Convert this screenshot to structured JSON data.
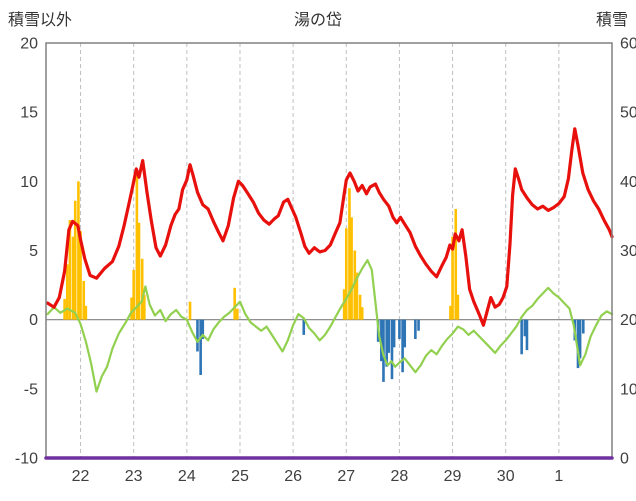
{
  "chart_data": {
    "type": "line",
    "title": "湯の岱",
    "left_axis": {
      "label": "積雪以外",
      "min": -10,
      "max": 20,
      "ticks": [
        20,
        15,
        10,
        5,
        0,
        -5,
        -10
      ]
    },
    "right_axis": {
      "label": "積雪",
      "min": 0,
      "max": 60,
      "ticks": [
        60,
        50,
        40,
        30,
        20,
        10,
        0
      ]
    },
    "x_axis": {
      "range": [
        21.35,
        32
      ],
      "ticks": [
        {
          "x": 22,
          "label": "22"
        },
        {
          "x": 23,
          "label": "23"
        },
        {
          "x": 24,
          "label": "24"
        },
        {
          "x": 25,
          "label": "25"
        },
        {
          "x": 26,
          "label": "26"
        },
        {
          "x": 27,
          "label": "27"
        },
        {
          "x": 28,
          "label": "28"
        },
        {
          "x": 29,
          "label": "29"
        },
        {
          "x": 30,
          "label": "30"
        },
        {
          "x": 31,
          "label": "1"
        }
      ]
    },
    "layout": {
      "grid": "vertical-dashed",
      "legend": "none",
      "grid_color": "#c0c0c0",
      "border_color": "#808080",
      "zero_line_color": "#808080",
      "text_color": "#404040"
    },
    "series": [
      {
        "id": "orange-bars",
        "type": "bar",
        "axis": "left",
        "color": "#ffc000",
        "points": [
          [
            21.7,
            1.5
          ],
          [
            21.75,
            4.0
          ],
          [
            21.8,
            7.2
          ],
          [
            21.86,
            6.0
          ],
          [
            21.9,
            8.6
          ],
          [
            21.96,
            10.0
          ],
          [
            22.0,
            6.4
          ],
          [
            22.06,
            2.8
          ],
          [
            22.1,
            1.0
          ],
          [
            22.96,
            1.6
          ],
          [
            23.0,
            3.6
          ],
          [
            23.06,
            10.4
          ],
          [
            23.1,
            7.0
          ],
          [
            23.16,
            4.4
          ],
          [
            23.2,
            1.8
          ],
          [
            24.06,
            1.3
          ],
          [
            24.9,
            2.3
          ],
          [
            24.95,
            0.8
          ],
          [
            26.96,
            2.2
          ],
          [
            27.0,
            6.6
          ],
          [
            27.06,
            9.5
          ],
          [
            27.1,
            7.4
          ],
          [
            27.16,
            5.0
          ],
          [
            27.2,
            3.4
          ],
          [
            27.26,
            1.8
          ],
          [
            27.3,
            0.9
          ],
          [
            28.96,
            1.0
          ],
          [
            29.0,
            6.0
          ],
          [
            29.06,
            8.0
          ],
          [
            29.1,
            1.8
          ]
        ]
      },
      {
        "id": "blue-bars",
        "type": "bar",
        "axis": "left",
        "color": "#2e75b6",
        "points": [
          [
            24.2,
            -2.3
          ],
          [
            24.26,
            -4.0
          ],
          [
            24.3,
            -1.4
          ],
          [
            26.2,
            -1.1
          ],
          [
            27.6,
            -1.6
          ],
          [
            27.66,
            -3.0
          ],
          [
            27.7,
            -4.5
          ],
          [
            27.76,
            -3.4
          ],
          [
            27.8,
            -2.4
          ],
          [
            27.86,
            -4.3
          ],
          [
            27.9,
            -2.0
          ],
          [
            28.0,
            -1.4
          ],
          [
            28.06,
            -3.8
          ],
          [
            28.1,
            -2.0
          ],
          [
            28.3,
            -1.4
          ],
          [
            28.36,
            -0.8
          ],
          [
            30.3,
            -2.5
          ],
          [
            30.36,
            -1.2
          ],
          [
            30.4,
            -2.2
          ],
          [
            31.3,
            -1.5
          ],
          [
            31.36,
            -3.5
          ],
          [
            31.4,
            -2.8
          ],
          [
            31.46,
            -1.0
          ]
        ]
      },
      {
        "id": "green-line",
        "type": "line",
        "axis": "left",
        "color": "#92d050",
        "width": 2.2,
        "points": [
          [
            21.38,
            0.4
          ],
          [
            21.5,
            0.9
          ],
          [
            21.62,
            0.5
          ],
          [
            21.75,
            0.8
          ],
          [
            21.9,
            0.5
          ],
          [
            22.0,
            -0.3
          ],
          [
            22.1,
            -1.6
          ],
          [
            22.2,
            -3.2
          ],
          [
            22.3,
            -5.2
          ],
          [
            22.4,
            -4.1
          ],
          [
            22.5,
            -3.4
          ],
          [
            22.6,
            -2.1
          ],
          [
            22.72,
            -1.0
          ],
          [
            22.85,
            -0.2
          ],
          [
            22.95,
            0.5
          ],
          [
            23.05,
            0.9
          ],
          [
            23.15,
            1.3
          ],
          [
            23.22,
            2.4
          ],
          [
            23.3,
            1.1
          ],
          [
            23.4,
            0.3
          ],
          [
            23.5,
            0.7
          ],
          [
            23.6,
            -0.1
          ],
          [
            23.7,
            0.4
          ],
          [
            23.8,
            0.7
          ],
          [
            23.9,
            0.2
          ],
          [
            24.0,
            0.0
          ],
          [
            24.1,
            -0.9
          ],
          [
            24.2,
            -1.6
          ],
          [
            24.3,
            -1.1
          ],
          [
            24.4,
            -1.5
          ],
          [
            24.5,
            -0.7
          ],
          [
            24.6,
            -0.2
          ],
          [
            24.7,
            0.2
          ],
          [
            24.8,
            0.5
          ],
          [
            24.9,
            0.9
          ],
          [
            25.0,
            1.3
          ],
          [
            25.1,
            0.4
          ],
          [
            25.2,
            -0.2
          ],
          [
            25.3,
            -0.5
          ],
          [
            25.4,
            -0.8
          ],
          [
            25.5,
            -0.5
          ],
          [
            25.6,
            -1.1
          ],
          [
            25.7,
            -1.7
          ],
          [
            25.8,
            -2.3
          ],
          [
            25.9,
            -1.5
          ],
          [
            26.0,
            -0.4
          ],
          [
            26.1,
            0.4
          ],
          [
            26.2,
            0.1
          ],
          [
            26.3,
            -0.6
          ],
          [
            26.4,
            -1.0
          ],
          [
            26.5,
            -1.5
          ],
          [
            26.6,
            -1.1
          ],
          [
            26.7,
            -0.5
          ],
          [
            26.8,
            0.2
          ],
          [
            26.9,
            0.9
          ],
          [
            27.0,
            1.5
          ],
          [
            27.1,
            2.2
          ],
          [
            27.2,
            3.0
          ],
          [
            27.3,
            3.7
          ],
          [
            27.4,
            4.3
          ],
          [
            27.48,
            3.6
          ],
          [
            27.55,
            1.2
          ],
          [
            27.62,
            -1.2
          ],
          [
            27.7,
            -2.6
          ],
          [
            27.78,
            -3.3
          ],
          [
            27.85,
            -3.0
          ],
          [
            27.92,
            -3.4
          ],
          [
            28.0,
            -3.1
          ],
          [
            28.1,
            -2.8
          ],
          [
            28.2,
            -3.3
          ],
          [
            28.3,
            -3.8
          ],
          [
            28.4,
            -3.3
          ],
          [
            28.5,
            -2.6
          ],
          [
            28.6,
            -2.2
          ],
          [
            28.7,
            -2.5
          ],
          [
            28.8,
            -1.9
          ],
          [
            28.9,
            -1.4
          ],
          [
            29.0,
            -1.0
          ],
          [
            29.1,
            -0.5
          ],
          [
            29.2,
            -0.7
          ],
          [
            29.3,
            -1.1
          ],
          [
            29.4,
            -0.8
          ],
          [
            29.5,
            -1.2
          ],
          [
            29.6,
            -1.6
          ],
          [
            29.7,
            -2.0
          ],
          [
            29.8,
            -2.4
          ],
          [
            29.9,
            -1.9
          ],
          [
            30.0,
            -1.5
          ],
          [
            30.1,
            -1.0
          ],
          [
            30.2,
            -0.5
          ],
          [
            30.3,
            0.2
          ],
          [
            30.4,
            0.7
          ],
          [
            30.5,
            1.0
          ],
          [
            30.6,
            1.5
          ],
          [
            30.7,
            1.9
          ],
          [
            30.8,
            2.3
          ],
          [
            30.9,
            1.9
          ],
          [
            31.0,
            1.6
          ],
          [
            31.1,
            1.2
          ],
          [
            31.2,
            0.8
          ],
          [
            31.28,
            -0.4
          ],
          [
            31.35,
            -2.1
          ],
          [
            31.4,
            -3.3
          ],
          [
            31.5,
            -2.5
          ],
          [
            31.6,
            -1.2
          ],
          [
            31.7,
            -0.4
          ],
          [
            31.8,
            0.3
          ],
          [
            31.9,
            0.6
          ],
          [
            32.0,
            0.4
          ]
        ]
      },
      {
        "id": "red-line",
        "type": "line",
        "axis": "left",
        "color": "#e8100c",
        "width": 3.2,
        "points": [
          [
            21.38,
            1.2
          ],
          [
            21.5,
            0.9
          ],
          [
            21.6,
            1.6
          ],
          [
            21.7,
            3.5
          ],
          [
            21.78,
            6.5
          ],
          [
            21.85,
            7.1
          ],
          [
            21.95,
            6.8
          ],
          [
            22.0,
            5.8
          ],
          [
            22.08,
            4.4
          ],
          [
            22.18,
            3.2
          ],
          [
            22.3,
            3.0
          ],
          [
            22.45,
            3.7
          ],
          [
            22.6,
            4.2
          ],
          [
            22.72,
            5.3
          ],
          [
            22.82,
            6.8
          ],
          [
            22.9,
            8.2
          ],
          [
            22.98,
            9.6
          ],
          [
            23.05,
            10.9
          ],
          [
            23.1,
            10.3
          ],
          [
            23.17,
            11.5
          ],
          [
            23.25,
            9.2
          ],
          [
            23.33,
            7.2
          ],
          [
            23.42,
            5.2
          ],
          [
            23.5,
            4.6
          ],
          [
            23.6,
            5.4
          ],
          [
            23.7,
            6.8
          ],
          [
            23.78,
            7.6
          ],
          [
            23.85,
            8.0
          ],
          [
            23.92,
            9.4
          ],
          [
            24.0,
            10.1
          ],
          [
            24.06,
            11.2
          ],
          [
            24.12,
            10.4
          ],
          [
            24.2,
            9.2
          ],
          [
            24.3,
            8.3
          ],
          [
            24.4,
            8.0
          ],
          [
            24.5,
            7.1
          ],
          [
            24.6,
            6.3
          ],
          [
            24.68,
            5.7
          ],
          [
            24.78,
            6.8
          ],
          [
            24.88,
            8.8
          ],
          [
            24.97,
            10.0
          ],
          [
            25.05,
            9.7
          ],
          [
            25.15,
            9.1
          ],
          [
            25.25,
            8.5
          ],
          [
            25.35,
            7.7
          ],
          [
            25.45,
            7.2
          ],
          [
            25.55,
            6.9
          ],
          [
            25.65,
            7.3
          ],
          [
            25.72,
            7.5
          ],
          [
            25.82,
            8.5
          ],
          [
            25.9,
            8.7
          ],
          [
            25.97,
            8.1
          ],
          [
            26.05,
            7.4
          ],
          [
            26.15,
            6.2
          ],
          [
            26.22,
            5.3
          ],
          [
            26.3,
            4.8
          ],
          [
            26.4,
            5.2
          ],
          [
            26.5,
            4.9
          ],
          [
            26.6,
            5.0
          ],
          [
            26.7,
            5.4
          ],
          [
            26.8,
            6.3
          ],
          [
            26.88,
            7.0
          ],
          [
            26.95,
            8.8
          ],
          [
            27.0,
            10.1
          ],
          [
            27.07,
            10.6
          ],
          [
            27.15,
            10.0
          ],
          [
            27.22,
            9.3
          ],
          [
            27.3,
            9.7
          ],
          [
            27.38,
            9.1
          ],
          [
            27.45,
            9.6
          ],
          [
            27.55,
            9.8
          ],
          [
            27.62,
            9.2
          ],
          [
            27.7,
            8.7
          ],
          [
            27.8,
            8.2
          ],
          [
            27.88,
            7.4
          ],
          [
            27.95,
            7.0
          ],
          [
            28.02,
            7.4
          ],
          [
            28.1,
            6.9
          ],
          [
            28.2,
            6.3
          ],
          [
            28.3,
            5.3
          ],
          [
            28.4,
            4.6
          ],
          [
            28.5,
            4.0
          ],
          [
            28.6,
            3.5
          ],
          [
            28.7,
            3.1
          ],
          [
            28.8,
            3.9
          ],
          [
            28.88,
            4.5
          ],
          [
            28.95,
            5.4
          ],
          [
            29.0,
            5.1
          ],
          [
            29.05,
            6.2
          ],
          [
            29.12,
            5.7
          ],
          [
            29.18,
            6.5
          ],
          [
            29.25,
            4.6
          ],
          [
            29.32,
            2.2
          ],
          [
            29.4,
            1.3
          ],
          [
            29.5,
            0.4
          ],
          [
            29.58,
            -0.4
          ],
          [
            29.65,
            0.6
          ],
          [
            29.72,
            1.6
          ],
          [
            29.8,
            0.9
          ],
          [
            29.88,
            1.1
          ],
          [
            29.95,
            1.6
          ],
          [
            30.02,
            2.4
          ],
          [
            30.08,
            5.5
          ],
          [
            30.13,
            9.0
          ],
          [
            30.18,
            10.9
          ],
          [
            30.24,
            10.2
          ],
          [
            30.3,
            9.4
          ],
          [
            30.4,
            8.8
          ],
          [
            30.5,
            8.3
          ],
          [
            30.6,
            8.0
          ],
          [
            30.7,
            8.2
          ],
          [
            30.8,
            7.9
          ],
          [
            30.9,
            8.1
          ],
          [
            31.0,
            8.4
          ],
          [
            31.1,
            8.9
          ],
          [
            31.18,
            10.2
          ],
          [
            31.25,
            12.4
          ],
          [
            31.3,
            13.8
          ],
          [
            31.36,
            12.6
          ],
          [
            31.45,
            10.6
          ],
          [
            31.55,
            9.4
          ],
          [
            31.65,
            8.6
          ],
          [
            31.75,
            8.0
          ],
          [
            31.85,
            7.2
          ],
          [
            31.95,
            6.5
          ],
          [
            32.0,
            6.0
          ]
        ]
      },
      {
        "id": "purple-line",
        "type": "line",
        "axis": "right",
        "color": "#7030a0",
        "width": 3.5,
        "points": [
          [
            21.35,
            0
          ],
          [
            32,
            0
          ]
        ]
      }
    ]
  }
}
